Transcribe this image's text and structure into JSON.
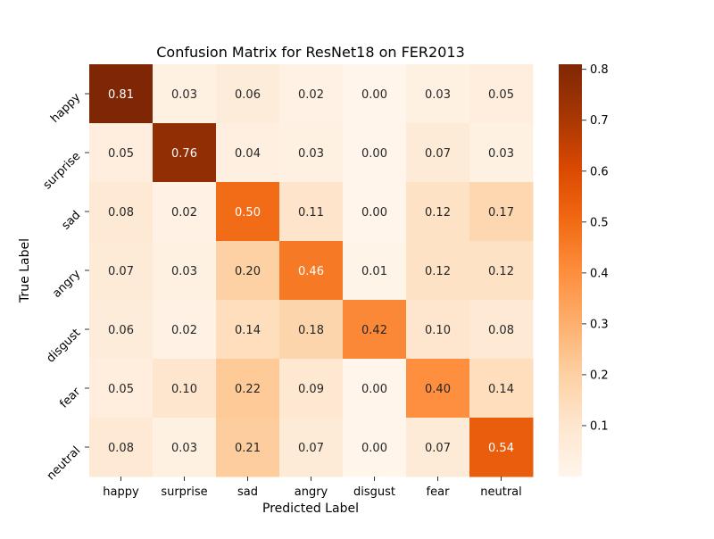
{
  "chart_data": {
    "type": "heatmap",
    "title": "Confusion Matrix for ResNet18 on FER2013",
    "xlabel": "Predicted Label",
    "ylabel": "True Label",
    "x_categories": [
      "happy",
      "surprise",
      "sad",
      "angry",
      "disgust",
      "fear",
      "neutral"
    ],
    "y_categories": [
      "happy",
      "surprise",
      "sad",
      "angry",
      "disgust",
      "fear",
      "neutral"
    ],
    "values": [
      [
        0.81,
        0.03,
        0.06,
        0.02,
        0.0,
        0.03,
        0.05
      ],
      [
        0.05,
        0.76,
        0.04,
        0.03,
        0.0,
        0.07,
        0.03
      ],
      [
        0.08,
        0.02,
        0.5,
        0.11,
        0.0,
        0.12,
        0.17
      ],
      [
        0.07,
        0.03,
        0.2,
        0.46,
        0.01,
        0.12,
        0.12
      ],
      [
        0.06,
        0.02,
        0.14,
        0.18,
        0.42,
        0.1,
        0.08
      ],
      [
        0.05,
        0.1,
        0.22,
        0.09,
        0.0,
        0.4,
        0.14
      ],
      [
        0.08,
        0.03,
        0.21,
        0.07,
        0.0,
        0.07,
        0.54
      ]
    ],
    "value_format": "0.00",
    "colormap": "Oranges",
    "colorbar": {
      "min": 0.0,
      "max": 0.81,
      "ticks": [
        "0.1",
        "0.2",
        "0.3",
        "0.4",
        "0.5",
        "0.6",
        "0.7",
        "0.8"
      ]
    },
    "grid": false,
    "legend": "colorbar-right"
  }
}
